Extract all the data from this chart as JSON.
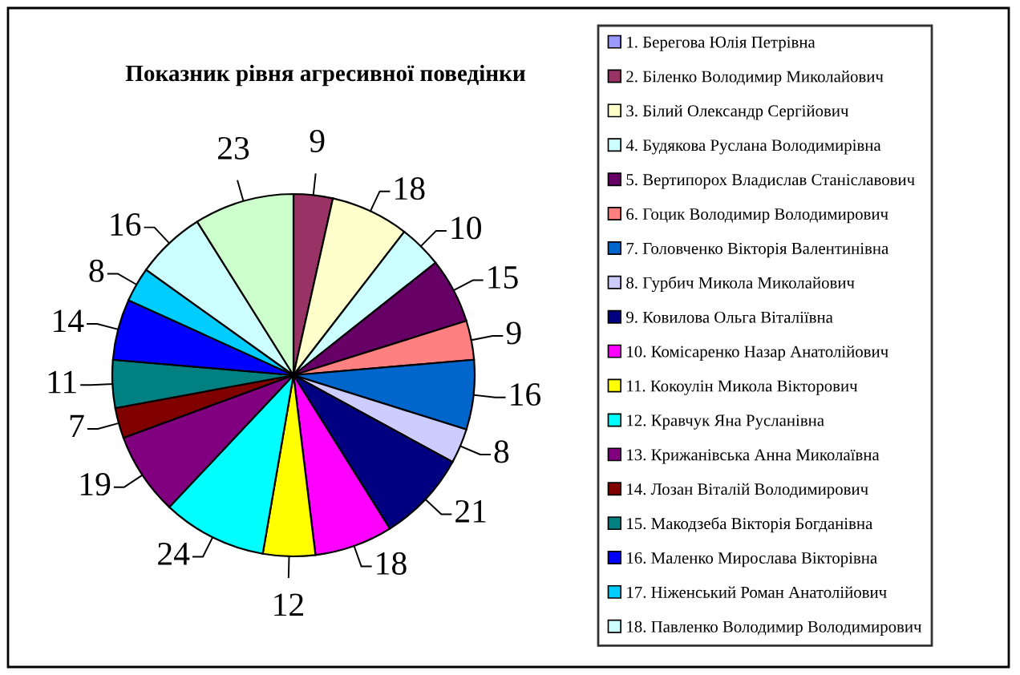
{
  "chart_data": {
    "type": "pie",
    "title": "Показник рівня агресивної поведінки",
    "categories": [
      "1. Берегова Юлія Петрівна",
      "2. Біленко Володимир Миколайович",
      "3. Білий Олександр Сергійович",
      "4. Будякова Руслана Володимирівна",
      "5. Вертипорох Владислав Станіславович",
      "6. Гоцик Володимир Володимирович",
      "7. Головченко Вікторія Валентинівна",
      "8. Гурбич Микола Миколайович",
      "9. Ковилова Ольга Віталіївна",
      "10. Комісаренко Назар Анатолійович",
      "11. Кокоулін Микола Вікторович",
      "12. Кравчук Яна Русланівна",
      "13. Крижанівська Анна Миколаївна",
      "14. Лозан Віталій Володимирович",
      "15. Макодзеба Вікторія Богданівна",
      "16. Маленко Мирослава Вікторівна",
      "17. Ніженський Роман Анатолійович",
      "18. Павленко Володимир Володимирович",
      null
    ],
    "values": [
      null,
      9,
      18,
      10,
      15,
      9,
      16,
      8,
      21,
      18,
      12,
      24,
      19,
      7,
      11,
      14,
      8,
      16,
      23
    ],
    "colors": [
      "#9999ff",
      "#993366",
      "#ffffcc",
      "#ccffff",
      "#660066",
      "#ff8080",
      "#0066cc",
      "#ccccff",
      "#000080",
      "#ff00ff",
      "#ffff00",
      "#00ffff",
      "#800080",
      "#800000",
      "#008080",
      "#0000ff",
      "#00ccff",
      "#ccffff",
      "#ccffcc"
    ],
    "data_labels": true,
    "legend": "right"
  }
}
